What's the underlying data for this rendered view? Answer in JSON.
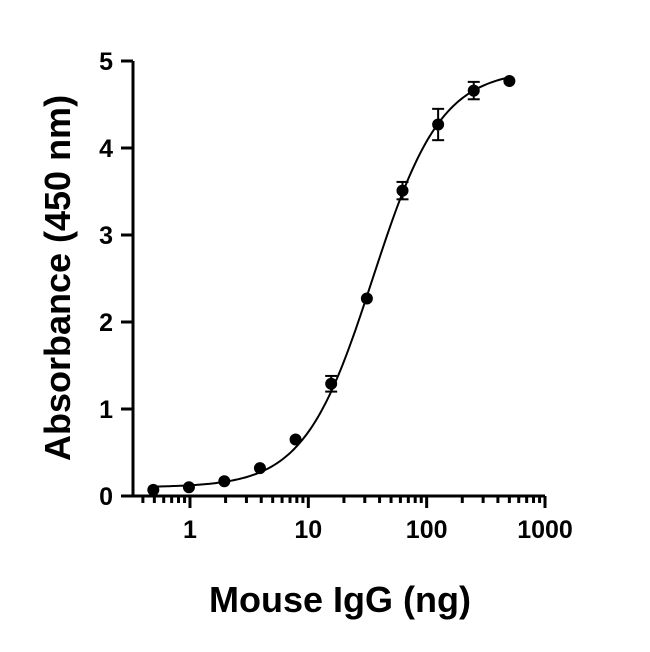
{
  "chart_data": {
    "type": "scatter",
    "title": "",
    "xlabel": "Mouse IgG (ng)",
    "ylabel": "Absorbance (450 nm)",
    "x_scale": "log",
    "xlim": [
      0.33,
      1000
    ],
    "ylim": [
      0,
      5
    ],
    "x_ticks": [
      1,
      10,
      100,
      1000
    ],
    "x_tick_labels": [
      "1",
      "10",
      "100",
      "1000"
    ],
    "y_ticks": [
      0,
      1,
      2,
      3,
      4,
      5
    ],
    "y_tick_labels": [
      "0",
      "1",
      "2",
      "3",
      "4",
      "5"
    ],
    "grid": false,
    "legend": "none",
    "color": "#000000",
    "series": [
      {
        "x": [
          0.49,
          0.98,
          1.95,
          3.9,
          7.8,
          15.6,
          31.25,
          62.5,
          125,
          250,
          500
        ],
        "y": [
          0.07,
          0.1,
          0.17,
          0.32,
          0.65,
          1.29,
          2.27,
          3.51,
          4.27,
          4.66,
          4.77
        ],
        "error": [
          0.02,
          0.02,
          0.02,
          0.02,
          0.03,
          0.09,
          0.03,
          0.1,
          0.18,
          0.1,
          0.03
        ]
      }
    ],
    "fit": {
      "model": "4PL",
      "bottom": 0.1,
      "top": 4.9,
      "ec50": 35,
      "hill": 1.5
    }
  }
}
